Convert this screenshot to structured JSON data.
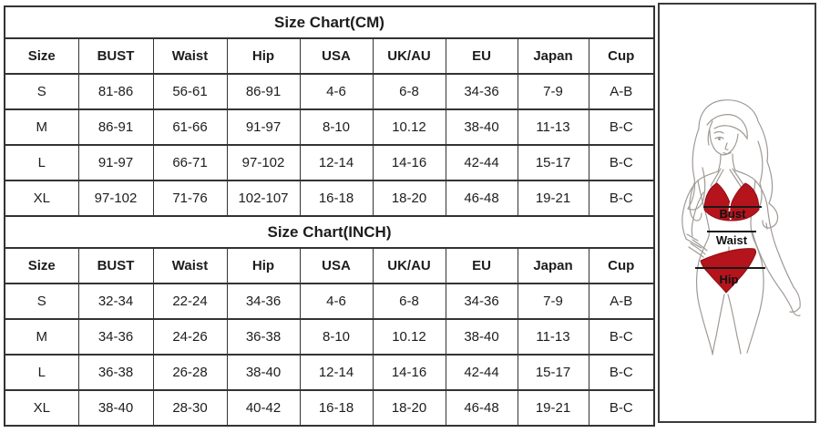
{
  "tables": [
    {
      "title": "Size Chart(CM)",
      "columns": [
        "Size",
        "BUST",
        "Waist",
        "Hip",
        "USA",
        "UK/AU",
        "EU",
        "Japan",
        "Cup"
      ],
      "rows": [
        [
          "S",
          "81-86",
          "56-61",
          "86-91",
          "4-6",
          "6-8",
          "34-36",
          "7-9",
          "A-B"
        ],
        [
          "M",
          "86-91",
          "61-66",
          "91-97",
          "8-10",
          "10.12",
          "38-40",
          "11-13",
          "B-C"
        ],
        [
          "L",
          "91-97",
          "66-71",
          "97-102",
          "12-14",
          "14-16",
          "42-44",
          "15-17",
          "B-C"
        ],
        [
          "XL",
          "97-102",
          "71-76",
          "102-107",
          "16-18",
          "18-20",
          "46-48",
          "19-21",
          "B-C"
        ]
      ]
    },
    {
      "title": "Size Chart(INCH)",
      "columns": [
        "Size",
        "BUST",
        "Waist",
        "Hip",
        "USA",
        "UK/AU",
        "EU",
        "Japan",
        "Cup"
      ],
      "rows": [
        [
          "S",
          "32-34",
          "22-24",
          "34-36",
          "4-6",
          "6-8",
          "34-36",
          "7-9",
          "A-B"
        ],
        [
          "M",
          "34-36",
          "24-26",
          "36-38",
          "8-10",
          "10.12",
          "38-40",
          "11-13",
          "B-C"
        ],
        [
          "L",
          "36-38",
          "26-28",
          "38-40",
          "12-14",
          "14-16",
          "42-44",
          "15-17",
          "B-C"
        ],
        [
          "XL",
          "38-40",
          "28-30",
          "40-42",
          "16-18",
          "18-20",
          "46-48",
          "19-21",
          "B-C"
        ]
      ]
    }
  ],
  "figure": {
    "labels": {
      "bust": "Bust",
      "waist": "Waist",
      "hip": "Hip"
    },
    "colors": {
      "bikini_red": "#b5141c",
      "bikini_red_edge": "#8e0e14",
      "line_art": "#a09a96",
      "measure_line": "#1a1a1a"
    }
  }
}
